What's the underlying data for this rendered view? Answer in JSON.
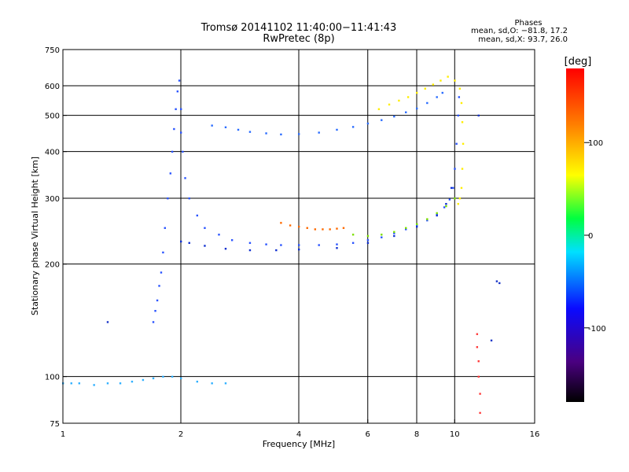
{
  "chart_data": {
    "type": "scatter",
    "title": "Tromsø 20141102 11:40:00−11:41:43",
    "subtitle": "RwPretec (8p)",
    "xlabel": "Frequency [MHz]",
    "ylabel": "Stationary phase Virtual Height [km]",
    "x_scale": "log",
    "y_scale": "log",
    "xlim": [
      1,
      16
    ],
    "ylim": [
      75,
      750
    ],
    "x_ticks": [
      1,
      2,
      4,
      6,
      8,
      10,
      16
    ],
    "y_ticks": [
      75,
      100,
      200,
      300,
      400,
      500,
      600,
      750
    ],
    "grid": true,
    "stats": {
      "heading": "Phases",
      "line_o": "mean, sd,O: −81.8, 17.2",
      "line_x": "mean, sd,X:  93.7, 26.0"
    },
    "colorbar": {
      "label": "[deg]",
      "ticks": [
        100,
        0,
        -100
      ],
      "range": [
        -180,
        180
      ]
    },
    "series": [
      {
        "color": "#2a54ff",
        "points": [
          [
            1.7,
            140
          ],
          [
            1.72,
            150
          ],
          [
            1.74,
            160
          ],
          [
            1.76,
            175
          ],
          [
            1.78,
            190
          ],
          [
            1.8,
            215
          ],
          [
            1.82,
            250
          ],
          [
            1.85,
            300
          ],
          [
            1.88,
            350
          ],
          [
            1.9,
            400
          ],
          [
            1.92,
            460
          ],
          [
            1.94,
            520
          ],
          [
            1.96,
            580
          ],
          [
            1.98,
            620
          ],
          [
            2.0,
            520
          ],
          [
            2.0,
            450
          ],
          [
            2.02,
            400
          ],
          [
            2.05,
            340
          ],
          [
            2.1,
            300
          ],
          [
            2.2,
            270
          ],
          [
            2.3,
            250
          ],
          [
            2.5,
            240
          ],
          [
            2.7,
            232
          ],
          [
            3.0,
            228
          ],
          [
            3.3,
            226
          ],
          [
            3.6,
            225
          ],
          [
            4.0,
            225
          ],
          [
            4.5,
            225
          ],
          [
            5.0,
            226
          ],
          [
            5.5,
            228
          ],
          [
            6.0,
            232
          ],
          [
            6.5,
            236
          ],
          [
            7.0,
            242
          ],
          [
            7.5,
            248
          ],
          [
            8.0,
            255
          ],
          [
            8.5,
            262
          ],
          [
            9.0,
            272
          ],
          [
            9.4,
            284
          ],
          [
            9.7,
            298
          ],
          [
            9.9,
            320
          ],
          [
            10.0,
            360
          ],
          [
            10.1,
            420
          ],
          [
            10.2,
            500
          ],
          [
            10.25,
            560
          ]
        ]
      },
      {
        "color": "#1030d0",
        "points": [
          [
            2.0,
            230
          ],
          [
            2.1,
            228
          ],
          [
            2.3,
            224
          ],
          [
            2.6,
            220
          ],
          [
            3.0,
            218
          ],
          [
            3.5,
            218
          ],
          [
            4.0,
            219
          ],
          [
            5.0,
            221
          ],
          [
            6.0,
            228
          ],
          [
            7.0,
            238
          ],
          [
            8.0,
            252
          ],
          [
            9.0,
            270
          ],
          [
            9.5,
            290
          ],
          [
            9.8,
            320
          ]
        ]
      },
      {
        "color": "#2a6cff",
        "points": [
          [
            2.4,
            470
          ],
          [
            2.6,
            465
          ],
          [
            2.8,
            458
          ],
          [
            3.0,
            452
          ],
          [
            3.3,
            448
          ],
          [
            3.6,
            445
          ],
          [
            4.0,
            446
          ],
          [
            4.5,
            450
          ],
          [
            5.0,
            458
          ],
          [
            5.5,
            466
          ],
          [
            6.0,
            476
          ],
          [
            6.5,
            486
          ],
          [
            7.0,
            497
          ],
          [
            7.5,
            510
          ],
          [
            8.0,
            522
          ],
          [
            8.5,
            540
          ],
          [
            9.0,
            560
          ],
          [
            9.3,
            575
          ]
        ]
      },
      {
        "color": "#2fb0ff",
        "points": [
          [
            1.0,
            96
          ],
          [
            1.05,
            96
          ],
          [
            1.1,
            96
          ],
          [
            1.2,
            95
          ],
          [
            1.3,
            96
          ],
          [
            1.4,
            96
          ],
          [
            1.5,
            97
          ],
          [
            1.6,
            98
          ],
          [
            1.7,
            99
          ],
          [
            1.8,
            100
          ],
          [
            1.9,
            100
          ],
          [
            2.0,
            99
          ],
          [
            2.2,
            97
          ],
          [
            2.4,
            96
          ],
          [
            2.6,
            96
          ]
        ]
      },
      {
        "color": "#ff6a00",
        "points": [
          [
            3.6,
            258
          ],
          [
            3.8,
            254
          ],
          [
            4.0,
            252
          ],
          [
            4.2,
            250
          ],
          [
            4.4,
            248
          ],
          [
            4.6,
            248
          ],
          [
            4.8,
            248
          ],
          [
            5.0,
            249
          ],
          [
            5.2,
            250
          ]
        ]
      },
      {
        "color": "#ffee00",
        "points": [
          [
            6.4,
            520
          ],
          [
            6.8,
            535
          ],
          [
            7.2,
            548
          ],
          [
            7.6,
            560
          ],
          [
            8.0,
            575
          ],
          [
            8.4,
            590
          ],
          [
            8.8,
            605
          ],
          [
            9.2,
            620
          ],
          [
            9.6,
            635
          ],
          [
            10.0,
            620
          ],
          [
            10.3,
            590
          ],
          [
            10.4,
            540
          ],
          [
            10.45,
            480
          ],
          [
            10.5,
            420
          ],
          [
            10.45,
            360
          ],
          [
            10.4,
            320
          ],
          [
            10.3,
            300
          ],
          [
            10.2,
            290
          ]
        ]
      },
      {
        "color": "#7de000",
        "points": [
          [
            5.5,
            240
          ],
          [
            6.0,
            238
          ],
          [
            6.5,
            240
          ],
          [
            7.0,
            244
          ],
          [
            7.5,
            250
          ],
          [
            8.0,
            256
          ],
          [
            8.5,
            264
          ],
          [
            9.0,
            274
          ],
          [
            9.5,
            286
          ],
          [
            10.0,
            300
          ]
        ]
      },
      {
        "color": "#ff3a3a",
        "points": [
          [
            11.4,
            120
          ],
          [
            11.4,
            130
          ],
          [
            11.5,
            110
          ],
          [
            11.5,
            100
          ],
          [
            11.6,
            90
          ],
          [
            11.6,
            80
          ]
        ]
      },
      {
        "color": "#1a36c8",
        "points": [
          [
            12.8,
            180
          ],
          [
            13.0,
            178
          ],
          [
            12.4,
            125
          ],
          [
            1.3,
            140
          ],
          [
            11.5,
            500
          ]
        ]
      }
    ]
  }
}
